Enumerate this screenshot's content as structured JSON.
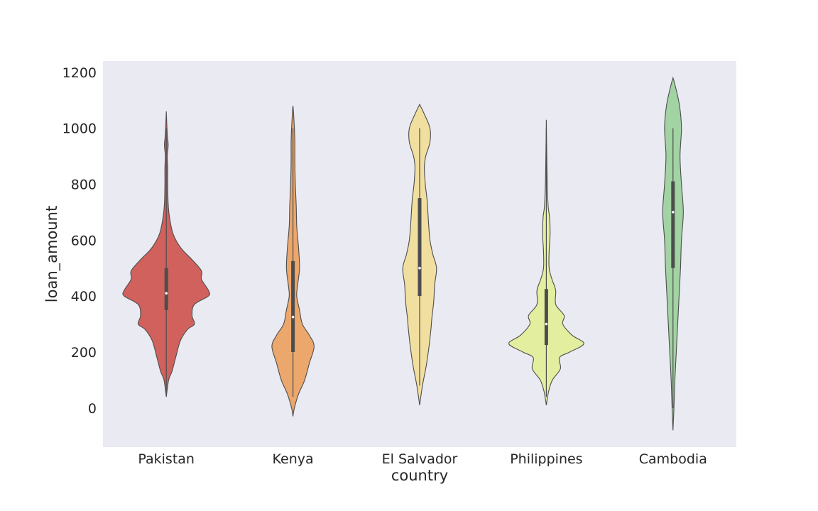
{
  "chart_data": {
    "type": "violin",
    "xlabel": "country",
    "ylabel": "loan_amount",
    "ylim": [
      -140,
      1240
    ],
    "yticks": [
      0,
      200,
      400,
      600,
      800,
      1000,
      1200
    ],
    "grid": false,
    "background_color": "#eaeaf2",
    "outline_color": "#4d4d4d",
    "categories": [
      "Pakistan",
      "Kenya",
      "El Salvador",
      "Philippines",
      "Cambodia"
    ],
    "series": [
      {
        "name": "Pakistan",
        "color": "#d0615d",
        "density_max_halfwidth": 0.37,
        "profile": [
          [
            40,
            0
          ],
          [
            100,
            0.05
          ],
          [
            130,
            0.12
          ],
          [
            180,
            0.2
          ],
          [
            240,
            0.3
          ],
          [
            280,
            0.45
          ],
          [
            300,
            0.6
          ],
          [
            330,
            0.55
          ],
          [
            370,
            0.6
          ],
          [
            400,
            0.9
          ],
          [
            420,
            0.9
          ],
          [
            460,
            0.75
          ],
          [
            490,
            0.75
          ],
          [
            530,
            0.55
          ],
          [
            570,
            0.32
          ],
          [
            620,
            0.15
          ],
          [
            680,
            0.07
          ],
          [
            730,
            0.04
          ],
          [
            800,
            0.03
          ],
          [
            860,
            0.03
          ],
          [
            900,
            0.02
          ],
          [
            940,
            0.04
          ],
          [
            980,
            0.02
          ],
          [
            1060,
            0
          ]
        ],
        "whisker": [
          40,
          1000
        ],
        "box": [
          350,
          500
        ],
        "median": 410
      },
      {
        "name": "Kenya",
        "color": "#eca76c",
        "density_max_halfwidth": 0.37,
        "profile": [
          [
            -30,
            0
          ],
          [
            0,
            0.03
          ],
          [
            50,
            0.12
          ],
          [
            100,
            0.25
          ],
          [
            160,
            0.35
          ],
          [
            220,
            0.45
          ],
          [
            260,
            0.35
          ],
          [
            300,
            0.2
          ],
          [
            350,
            0.14
          ],
          [
            400,
            0.08
          ],
          [
            440,
            0.1
          ],
          [
            500,
            0.14
          ],
          [
            570,
            0.12
          ],
          [
            650,
            0.08
          ],
          [
            720,
            0.07
          ],
          [
            800,
            0.05
          ],
          [
            880,
            0.04
          ],
          [
            950,
            0.04
          ],
          [
            1000,
            0.03
          ],
          [
            1060,
            0.01
          ],
          [
            1080,
            0
          ]
        ],
        "whisker": [
          40,
          1000
        ],
        "box": [
          200,
          525
        ],
        "median": 325
      },
      {
        "name": "El Salvador",
        "color": "#f1dfa0",
        "density_max_halfwidth": 0.37,
        "profile": [
          [
            10,
            0
          ],
          [
            80,
            0.06
          ],
          [
            150,
            0.14
          ],
          [
            220,
            0.2
          ],
          [
            280,
            0.24
          ],
          [
            320,
            0.26
          ],
          [
            380,
            0.3
          ],
          [
            440,
            0.32
          ],
          [
            500,
            0.36
          ],
          [
            550,
            0.28
          ],
          [
            600,
            0.22
          ],
          [
            660,
            0.19
          ],
          [
            740,
            0.16
          ],
          [
            800,
            0.12
          ],
          [
            860,
            0.1
          ],
          [
            900,
            0.13
          ],
          [
            950,
            0.22
          ],
          [
            1000,
            0.22
          ],
          [
            1050,
            0.1
          ],
          [
            1085,
            0
          ]
        ],
        "whisker": [
          80,
          1000
        ],
        "box": [
          400,
          750
        ],
        "median": 500
      },
      {
        "name": "Philippines",
        "color": "#e3ef9f",
        "density_max_halfwidth": 0.37,
        "profile": [
          [
            10,
            0
          ],
          [
            60,
            0.05
          ],
          [
            100,
            0.13
          ],
          [
            140,
            0.3
          ],
          [
            180,
            0.28
          ],
          [
            200,
            0.5
          ],
          [
            230,
            0.8
          ],
          [
            260,
            0.55
          ],
          [
            300,
            0.35
          ],
          [
            330,
            0.38
          ],
          [
            370,
            0.2
          ],
          [
            420,
            0.2
          ],
          [
            460,
            0.12
          ],
          [
            500,
            0.06
          ],
          [
            560,
            0.06
          ],
          [
            620,
            0.08
          ],
          [
            680,
            0.07
          ],
          [
            720,
            0.04
          ],
          [
            800,
            0.02
          ],
          [
            900,
            0.01
          ],
          [
            1030,
            0
          ]
        ],
        "whisker": [
          40,
          1000
        ],
        "box": [
          225,
          425
        ],
        "median": 300
      },
      {
        "name": "Cambodia",
        "color": "#a2d3a3",
        "density_max_halfwidth": 0.37,
        "profile": [
          [
            -80,
            0
          ],
          [
            0,
            0.02
          ],
          [
            100,
            0.04
          ],
          [
            200,
            0.07
          ],
          [
            300,
            0.1
          ],
          [
            400,
            0.13
          ],
          [
            500,
            0.16
          ],
          [
            600,
            0.18
          ],
          [
            700,
            0.22
          ],
          [
            800,
            0.18
          ],
          [
            900,
            0.15
          ],
          [
            1000,
            0.18
          ],
          [
            1080,
            0.14
          ],
          [
            1150,
            0.05
          ],
          [
            1180,
            0
          ]
        ],
        "whisker": [
          0,
          1000
        ],
        "box": [
          500,
          810
        ],
        "median": 700
      }
    ]
  }
}
